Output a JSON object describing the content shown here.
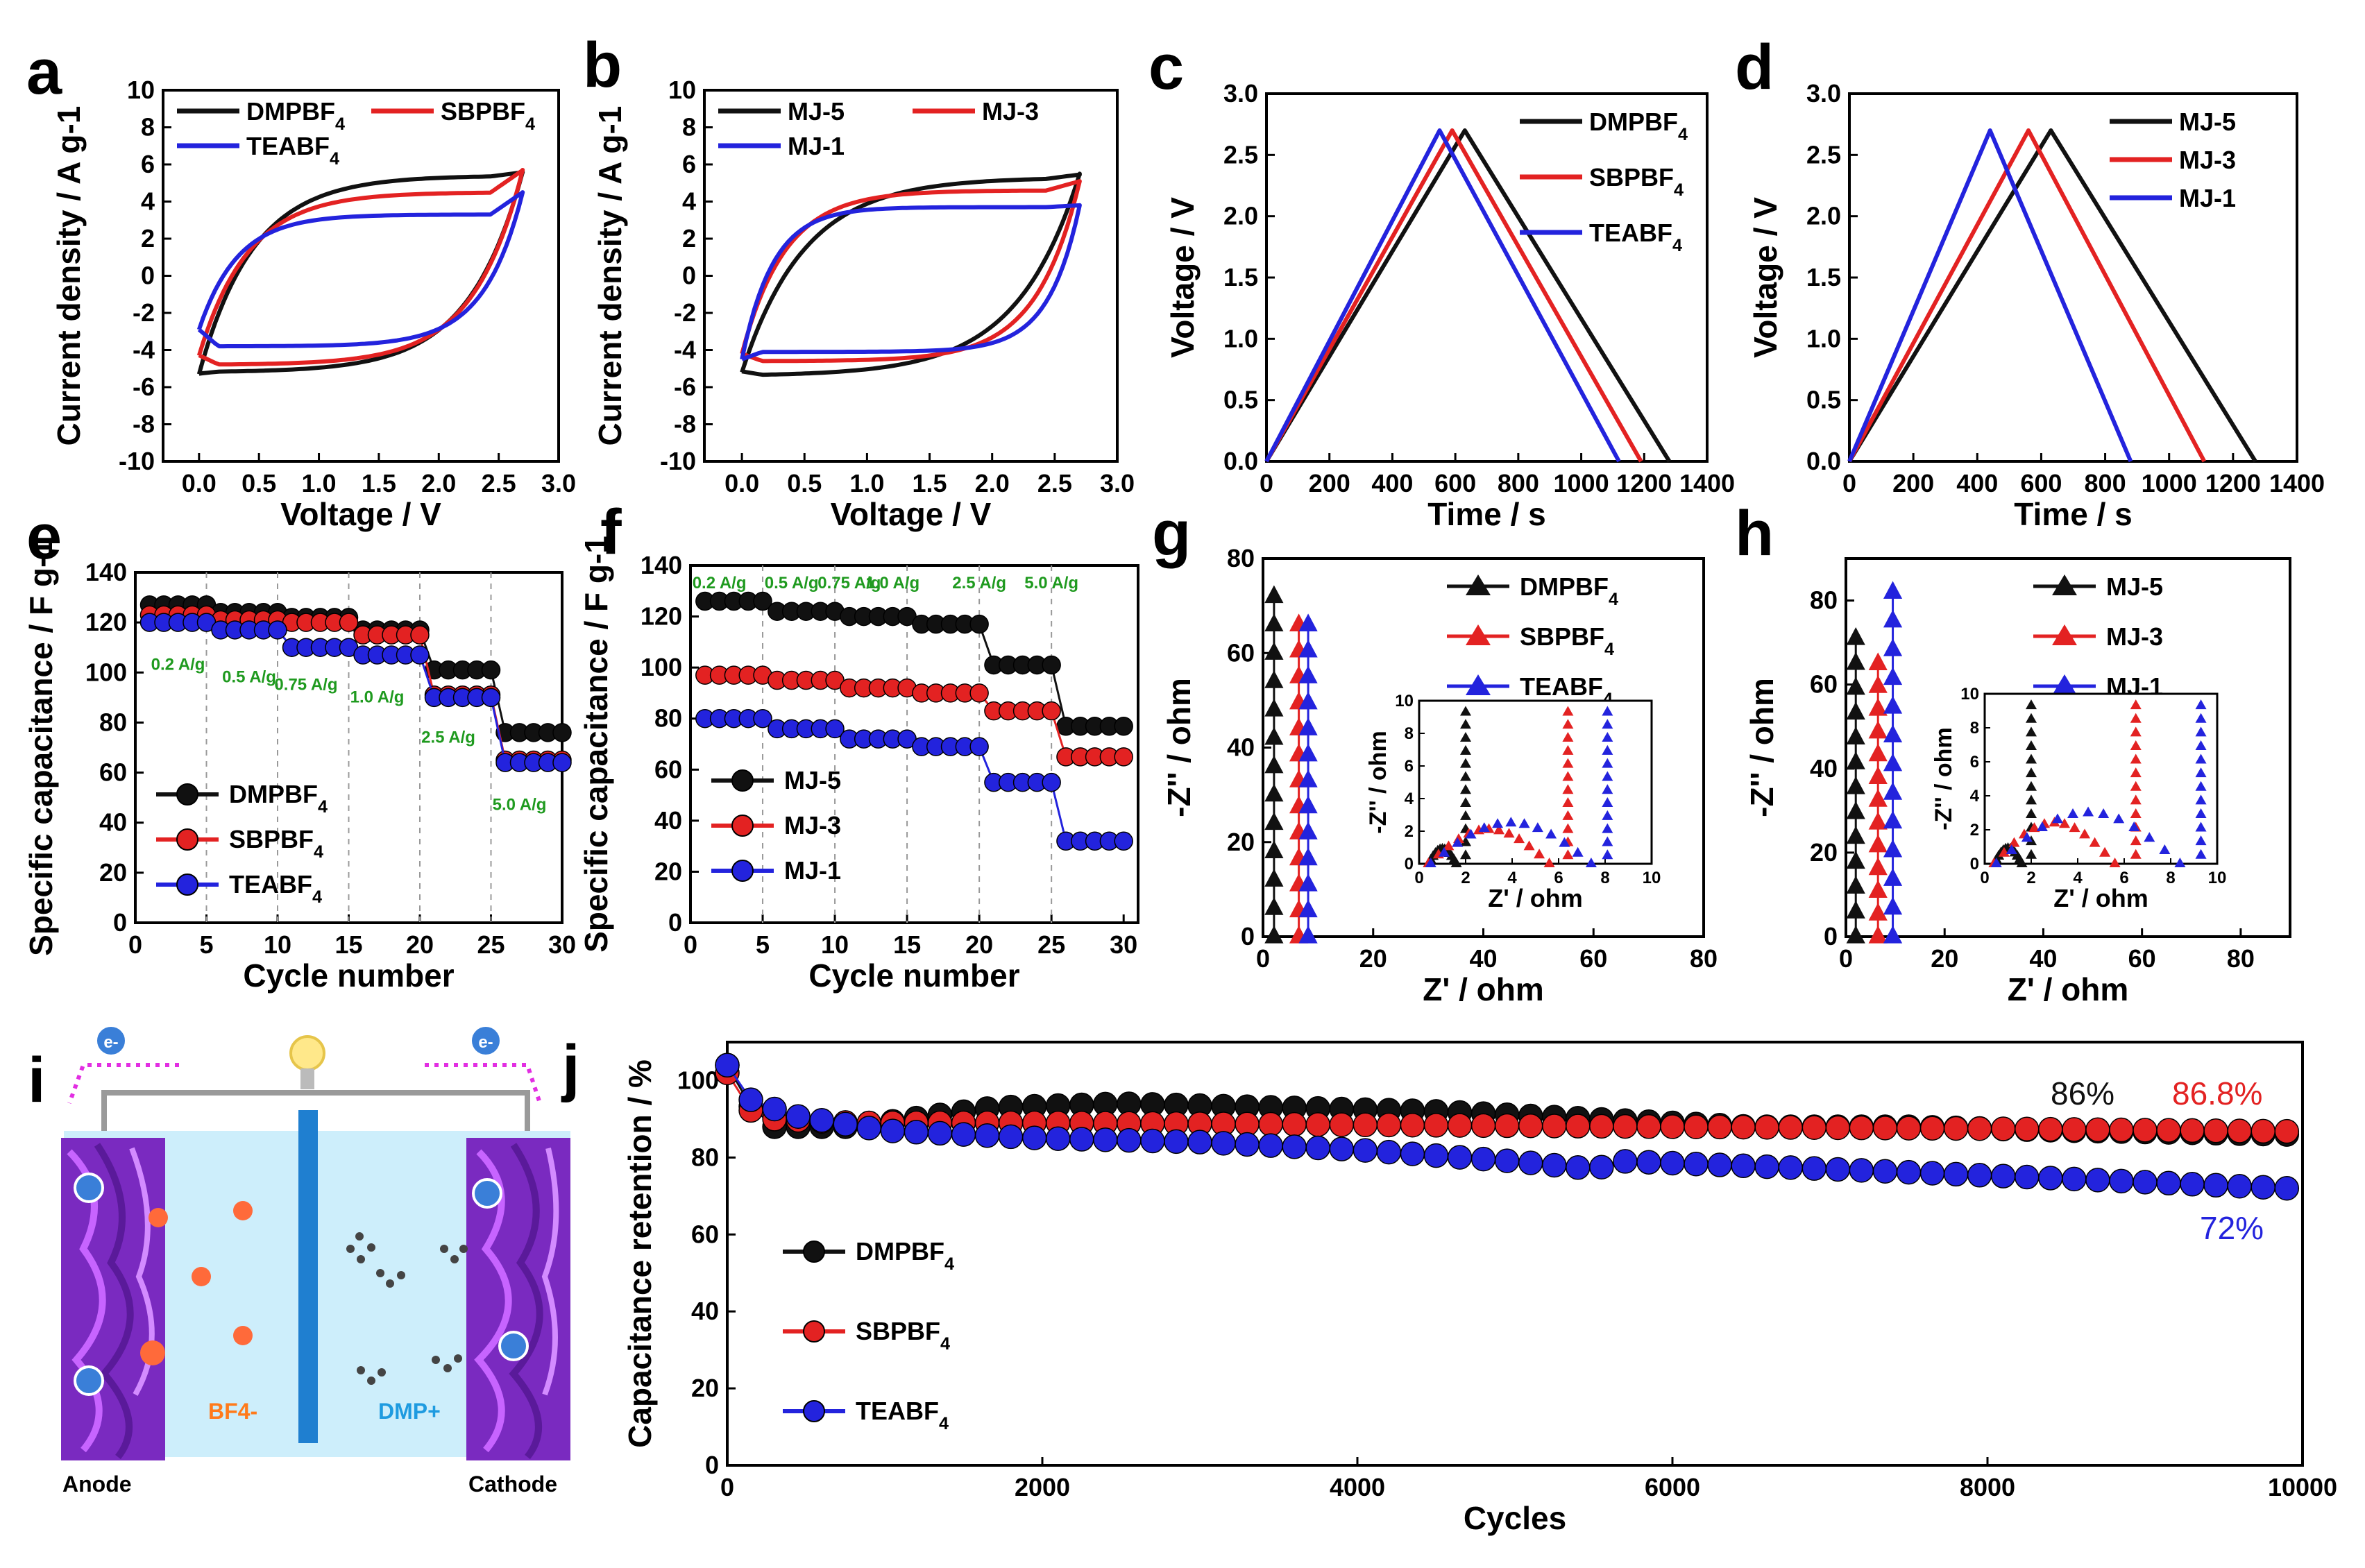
{
  "colors": {
    "black": "#111111",
    "red": "#e32222",
    "blue": "#2323dd",
    "green": "#1f9a1f",
    "magenta": "#e22ee2"
  },
  "chart_data": [
    {
      "id": "a",
      "panel_label": "a",
      "type": "line",
      "title": "",
      "xlabel": "Voltage / V",
      "ylabel": "Current density / A g-1",
      "xlim": [
        -0.3,
        3.0
      ],
      "ylim": [
        -10,
        10
      ],
      "xticks": [
        "0.0",
        "0.5",
        "1.0",
        "1.5",
        "2.0",
        "2.5",
        "3.0"
      ],
      "yticks": [
        "-10",
        "-8",
        "-6",
        "-4",
        "-2",
        "0",
        "2",
        "4",
        "6",
        "8",
        "10"
      ],
      "legend": [
        "DMPBF4",
        "SBPBF4",
        "TEABF4"
      ],
      "series": [
        {
          "name": "DMPBF4",
          "color": "black",
          "ctrl": {
            "y0": -5.3,
            "k": 1.0,
            "u": 5.4,
            "l": -5.2,
            "y1": 5.6
          }
        },
        {
          "name": "SBPBF4",
          "color": "red",
          "ctrl": {
            "y0": -4.3,
            "k": 1.1,
            "u": 4.5,
            "l": -4.8,
            "y1": 5.7
          }
        },
        {
          "name": "TEABF4",
          "color": "blue",
          "ctrl": {
            "y0": -2.9,
            "k": 1.4,
            "u": 3.3,
            "l": -3.8,
            "y1": 4.5
          }
        }
      ]
    },
    {
      "id": "b",
      "panel_label": "b",
      "type": "line",
      "title": "",
      "xlabel": "Voltage / V",
      "ylabel": "Current density / A g-1",
      "xlim": [
        -0.3,
        3.0
      ],
      "ylim": [
        -10,
        10
      ],
      "xticks": [
        "0.0",
        "0.5",
        "1.0",
        "1.5",
        "2.0",
        "2.5",
        "3.0"
      ],
      "yticks": [
        "-10",
        "-8",
        "-6",
        "-4",
        "-2",
        "0",
        "2",
        "4",
        "6",
        "8",
        "10"
      ],
      "legend": [
        "MJ-5",
        "MJ-3",
        "MJ-1"
      ],
      "series": [
        {
          "name": "MJ-5",
          "color": "black",
          "ctrl": {
            "y0": -5.2,
            "k": 0.9,
            "u": 5.3,
            "l": -5.4,
            "y1": 5.5
          }
        },
        {
          "name": "MJ-3",
          "color": "red",
          "ctrl": {
            "y0": -4.2,
            "k": 1.3,
            "u": 4.6,
            "l": -4.6,
            "y1": 5.1
          }
        },
        {
          "name": "MJ-1",
          "color": "blue",
          "ctrl": {
            "y0": -4.5,
            "k": 1.8,
            "u": 3.7,
            "l": -4.1,
            "y1": 3.8
          }
        }
      ]
    },
    {
      "id": "c",
      "panel_label": "c",
      "type": "line",
      "title": "",
      "xlabel": "Time / s",
      "ylabel": "Voltage / V",
      "xlim": [
        0,
        1400
      ],
      "ylim": [
        0,
        3.0
      ],
      "xticks": [
        "0",
        "200",
        "400",
        "600",
        "800",
        "1000",
        "1200",
        "1400"
      ],
      "yticks": [
        "0.0",
        "0.5",
        "1.0",
        "1.5",
        "2.0",
        "2.5",
        "3.0"
      ],
      "legend": [
        "DMPBF4",
        "SBPBF4",
        "TEABF4"
      ],
      "series": [
        {
          "name": "DMPBF4",
          "color": "black",
          "x": [
            0,
            630,
            1280
          ],
          "y": [
            0,
            2.7,
            0
          ]
        },
        {
          "name": "SBPBF4",
          "color": "red",
          "x": [
            0,
            590,
            1190
          ],
          "y": [
            0,
            2.7,
            0
          ]
        },
        {
          "name": "TEABF4",
          "color": "blue",
          "x": [
            0,
            550,
            1120
          ],
          "y": [
            0,
            2.7,
            0
          ]
        }
      ]
    },
    {
      "id": "d",
      "panel_label": "d",
      "type": "line",
      "title": "",
      "xlabel": "Time / s",
      "ylabel": "Voltage / V",
      "xlim": [
        0,
        1400
      ],
      "ylim": [
        0,
        3.0
      ],
      "xticks": [
        "0",
        "200",
        "400",
        "600",
        "800",
        "1000",
        "1200",
        "1400"
      ],
      "yticks": [
        "0.0",
        "0.5",
        "1.0",
        "1.5",
        "2.0",
        "2.5",
        "3.0"
      ],
      "legend": [
        "MJ-5",
        "MJ-3",
        "MJ-1"
      ],
      "series": [
        {
          "name": "MJ-5",
          "color": "black",
          "x": [
            0,
            630,
            1270
          ],
          "y": [
            0,
            2.7,
            0
          ]
        },
        {
          "name": "MJ-3",
          "color": "red",
          "x": [
            0,
            560,
            1110
          ],
          "y": [
            0,
            2.7,
            0
          ]
        },
        {
          "name": "MJ-1",
          "color": "blue",
          "x": [
            0,
            440,
            880
          ],
          "y": [
            0,
            2.7,
            0
          ]
        }
      ]
    },
    {
      "id": "e",
      "panel_label": "e",
      "type": "scatter",
      "title": "",
      "xlabel": "Cycle number",
      "ylabel": "Specific capacitance / F g-1",
      "xlim": [
        0,
        30
      ],
      "ylim": [
        0,
        140
      ],
      "xticks": [
        "0",
        "5",
        "10",
        "15",
        "20",
        "25",
        "30"
      ],
      "yticks": [
        "0",
        "20",
        "40",
        "60",
        "80",
        "100",
        "120",
        "140"
      ],
      "legend": [
        "DMPBF4",
        "SBPBF4",
        "TEABF4"
      ],
      "annotations": [
        "0.2 A/g",
        "0.5 A/g",
        "0.75 A/g",
        "1.0 A/g",
        "2.5 A/g",
        "5.0 A/g"
      ],
      "series": [
        {
          "name": "DMPBF4",
          "color": "black",
          "levels": [
            127,
            124,
            122,
            117,
            101,
            76
          ]
        },
        {
          "name": "SBPBF4",
          "color": "red",
          "levels": [
            123,
            121,
            120,
            115,
            91,
            65
          ]
        },
        {
          "name": "TEABF4",
          "color": "blue",
          "levels": [
            120,
            117,
            110,
            107,
            90,
            64
          ]
        }
      ]
    },
    {
      "id": "f",
      "panel_label": "f",
      "type": "scatter",
      "title": "",
      "xlabel": "Cycle number",
      "ylabel": "Specific capacitance / F g-1",
      "xlim": [
        0,
        31
      ],
      "ylim": [
        0,
        140
      ],
      "xticks": [
        "0",
        "5",
        "10",
        "15",
        "20",
        "25",
        "30"
      ],
      "yticks": [
        "0",
        "20",
        "40",
        "60",
        "80",
        "100",
        "120",
        "140"
      ],
      "legend": [
        "MJ-5",
        "MJ-3",
        "MJ-1"
      ],
      "annotations": [
        "0.2 A/g",
        "0.5 A/g",
        "0.75 A/g",
        "1.0 A/g",
        "2.5 A/g",
        "5.0 A/g"
      ],
      "series": [
        {
          "name": "MJ-5",
          "color": "black",
          "levels": [
            126,
            122,
            120,
            117,
            101,
            77
          ]
        },
        {
          "name": "MJ-3",
          "color": "red",
          "levels": [
            97,
            95,
            92,
            90,
            83,
            65
          ]
        },
        {
          "name": "MJ-1",
          "color": "blue",
          "levels": [
            80,
            76,
            72,
            69,
            55,
            32
          ]
        }
      ]
    },
    {
      "id": "g",
      "panel_label": "g",
      "type": "scatter",
      "title": "",
      "xlabel": "Z' / ohm",
      "ylabel": "-Z'' / ohm",
      "xlim": [
        0,
        80
      ],
      "ylim": [
        0,
        80
      ],
      "xticks": [
        "0",
        "20",
        "40",
        "60",
        "80"
      ],
      "yticks": [
        "0",
        "20",
        "40",
        "60",
        "80"
      ],
      "legend": [
        "DMPBF4",
        "SBPBF4",
        "TEABF4"
      ],
      "series": [
        {
          "name": "DMPBF4",
          "color": "black",
          "x0": 2.0,
          "ymax": 72
        },
        {
          "name": "SBPBF4",
          "color": "red",
          "x0": 6.5,
          "ymax": 66
        },
        {
          "name": "TEABF4",
          "color": "blue",
          "x0": 8.2,
          "ymax": 66
        }
      ],
      "inset": {
        "xlabel": "Z' / ohm",
        "ylabel": "-Z'' / ohm",
        "xlim": [
          0,
          10
        ],
        "ylim": [
          0,
          10
        ],
        "xticks": [
          "0",
          "2",
          "4",
          "6",
          "8",
          "10"
        ],
        "yticks": [
          "0",
          "2",
          "4",
          "6",
          "8",
          "10"
        ],
        "series": [
          {
            "color": "black",
            "arc": [
              0.4,
              1.6,
              0.9
            ],
            "x0": 2.0
          },
          {
            "color": "red",
            "arc": [
              0.4,
              5.6,
              2.1
            ],
            "x0": 6.4
          },
          {
            "color": "blue",
            "arc": [
              0.5,
              7.4,
              2.5
            ],
            "x0": 8.1
          }
        ]
      }
    },
    {
      "id": "h",
      "panel_label": "h",
      "type": "scatter",
      "title": "",
      "xlabel": "Z' / ohm",
      "ylabel": "-Z'' / ohm",
      "xlim": [
        0,
        90
      ],
      "ylim": [
        0,
        90
      ],
      "xticks": [
        "0",
        "20",
        "40",
        "60",
        "80"
      ],
      "yticks": [
        "0",
        "20",
        "40",
        "60",
        "80"
      ],
      "legend": [
        "MJ-5",
        "MJ-3",
        "MJ-1"
      ],
      "series": [
        {
          "name": "MJ-5",
          "color": "black",
          "x0": 2.0,
          "ymax": 71
        },
        {
          "name": "MJ-3",
          "color": "red",
          "x0": 6.5,
          "ymax": 65
        },
        {
          "name": "MJ-1",
          "color": "blue",
          "x0": 9.5,
          "ymax": 82
        }
      ],
      "inset": {
        "xlabel": "Z' / ohm",
        "ylabel": "-Z'' / ohm",
        "xlim": [
          0,
          10
        ],
        "ylim": [
          0,
          10
        ],
        "xticks": [
          "0",
          "2",
          "4",
          "6",
          "8",
          "10"
        ],
        "yticks": [
          "0",
          "2",
          "4",
          "6",
          "8",
          "10"
        ],
        "series": [
          {
            "color": "black",
            "arc": [
              0.4,
              1.6,
              0.9
            ],
            "x0": 2.0
          },
          {
            "color": "red",
            "arc": [
              0.4,
              5.6,
              2.4
            ],
            "x0": 6.5
          },
          {
            "color": "blue",
            "arc": [
              0.5,
              8.4,
              3.0
            ],
            "x0": 9.3
          }
        ]
      }
    },
    {
      "id": "j",
      "panel_label": "j",
      "type": "scatter",
      "title": "",
      "xlabel": "Cycles",
      "ylabel": "Capacitance retention / %",
      "xlim": [
        0,
        10000
      ],
      "ylim": [
        0,
        110
      ],
      "xticks": [
        "0",
        "2000",
        "4000",
        "6000",
        "8000",
        "10000"
      ],
      "yticks": [
        "0",
        "20",
        "40",
        "60",
        "80",
        "100"
      ],
      "legend": [
        "DMPBF4",
        "SBPBF4",
        "TEABF4"
      ],
      "labels": [
        {
          "text": "86%",
          "color": "black"
        },
        {
          "text": "86.8%",
          "color": "red"
        },
        {
          "text": "72%",
          "color": "blue"
        }
      ],
      "series": [
        {
          "name": "DMPBF4",
          "color": "black",
          "x": [
            0,
            100,
            300,
            800,
            1700,
            2500,
            3500,
            4500,
            5500,
            6500,
            7500,
            8500,
            9900
          ],
          "y": [
            104,
            95,
            88,
            88,
            93,
            94,
            93,
            92,
            90,
            88,
            88,
            87,
            86
          ]
        },
        {
          "name": "SBPBF4",
          "color": "red",
          "x": [
            0,
            100,
            300,
            800,
            2000,
            4000,
            6000,
            8000,
            9900
          ],
          "y": [
            102,
            93,
            90,
            89,
            89,
            88.5,
            88,
            87.5,
            86.8
          ]
        },
        {
          "name": "TEABF4",
          "color": "blue",
          "x": [
            0,
            150,
            400,
            1000,
            2000,
            3000,
            4000,
            5000,
            5500,
            5700,
            7000,
            8500,
            9900
          ],
          "y": [
            104,
            95,
            91,
            87,
            85,
            84,
            82,
            79,
            77,
            79,
            77,
            74.5,
            72
          ]
        }
      ]
    }
  ],
  "schematic": {
    "panel_label": "i",
    "labels": {
      "anode": "Anode",
      "cathode": "Cathode",
      "bf4": "BF4-",
      "dmp": "DMP+",
      "electron": "e-"
    }
  }
}
